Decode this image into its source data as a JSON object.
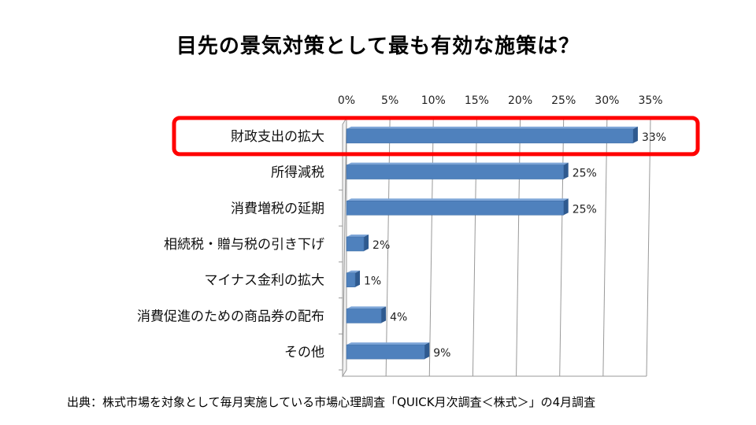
{
  "chart_data": {
    "type": "bar",
    "orientation": "horizontal",
    "title": "目先の景気対策として最も有効な施策は？",
    "categories": [
      "財政支出の拡大",
      "所得減税",
      "消費増税の延期",
      "相続税・贈与税の引き下げ",
      "マイナス金利の拡大",
      "消費促進のための商品券の配布",
      "その他"
    ],
    "values": [
      33,
      25,
      25,
      2,
      1,
      4,
      9
    ],
    "data_labels": [
      "33%",
      "25%",
      "25%",
      "2%",
      "1%",
      "4%",
      "9%"
    ],
    "xlim": [
      0,
      35
    ],
    "x_ticks": [
      "0%",
      "5%",
      "10%",
      "15%",
      "20%",
      "25%",
      "30%",
      "35%"
    ],
    "x_axis_position": "top",
    "grid": true,
    "bar_color": "#4F81BD",
    "highlight_color": "#FF0000",
    "highlighted_category": "財政支出の拡大"
  },
  "source_note": "出典：株式市場を対象として毎月実施している市場心理調査「QUICK月次調査＜株式＞」の4月調査"
}
